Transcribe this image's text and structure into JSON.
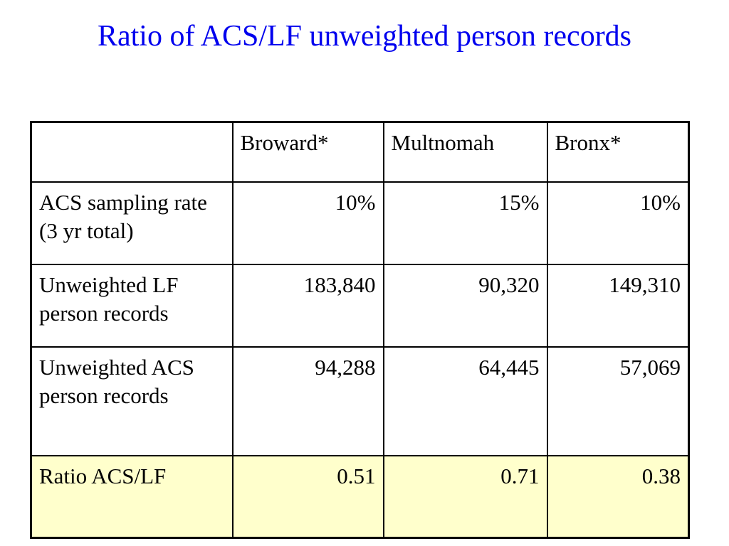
{
  "title": "Ratio of ACS/LF unweighted person records",
  "table": {
    "columns": [
      "",
      "Broward*",
      "Multnomah",
      "Bronx*"
    ],
    "rows": [
      {
        "label": "ACS sampling rate (3 yr total)",
        "values": [
          "10%",
          "15%",
          "10%"
        ]
      },
      {
        "label": "Unweighted LF person records",
        "values": [
          "183,840",
          "90,320",
          "149,310"
        ]
      },
      {
        "label": "Unweighted ACS person records",
        "values": [
          "94,288",
          "64,445",
          "57,069"
        ]
      },
      {
        "label": "Ratio ACS/LF",
        "values": [
          "0.51",
          "0.71",
          "0.38"
        ]
      }
    ]
  },
  "colors": {
    "title": "#0000ee",
    "highlight_row": "#ffffcc"
  }
}
